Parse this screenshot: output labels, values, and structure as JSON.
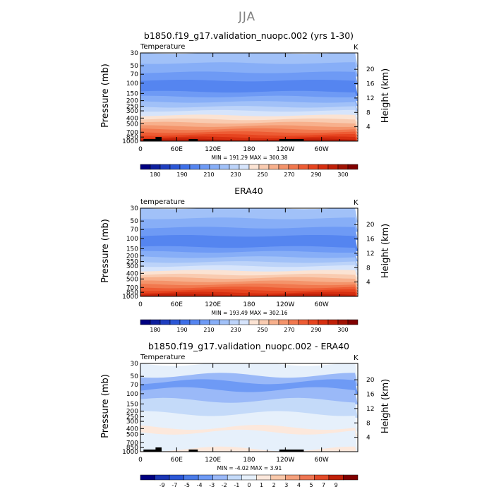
{
  "page_title": "JJA",
  "chart_data": [
    {
      "type": "heatmap",
      "title": "b1850.f19_g17.validation_nuopc.002 (yrs 1-30)",
      "variable_label": "Temperature",
      "units": "K",
      "ylabel": "Pressure (mb)",
      "ylabel_right": "Height (km)",
      "minmax_text": "MIN = 191.29   MAX = 300.38",
      "x_ticks": [
        "0",
        "60E",
        "120E",
        "180",
        "120W",
        "60W"
      ],
      "y_ticks": [
        "30",
        "50",
        "70",
        "100",
        "150",
        "200",
        "250",
        "300",
        "400",
        "500",
        "700",
        "850",
        "1000"
      ],
      "height_ticks": [
        "20",
        "16",
        "12",
        "8",
        "4"
      ],
      "levels": [
        180,
        185,
        190,
        195,
        200,
        205,
        210,
        215,
        220,
        225,
        230,
        235,
        240,
        245,
        250,
        255,
        260,
        265,
        270,
        275,
        280,
        285,
        290,
        295,
        300
      ],
      "colorbar_labels": [
        "180",
        "190",
        "210",
        "230",
        "250",
        "270",
        "290",
        "300"
      ],
      "colors": [
        "#000080",
        "#0d1f9e",
        "#1f3ebf",
        "#2b57d6",
        "#3d6fe8",
        "#5585f0",
        "#6e9af5",
        "#87aef7",
        "#a1c1f8",
        "#bcd3f9",
        "#d6e4fb",
        "#fbe3d3",
        "#f9cbb0",
        "#f7b08c",
        "#f4946b",
        "#f1784e",
        "#ed5c34",
        "#e6441f",
        "#d62f10",
        "#c02008",
        "#a01304",
        "#800000"
      ],
      "has_topography": true
    },
    {
      "type": "heatmap",
      "title": "ERA40",
      "variable_label": "temperature",
      "units": "K",
      "ylabel": "Pressure (mb)",
      "ylabel_right": "Height (km)",
      "minmax_text": "MIN = 193.49   MAX = 302.16",
      "x_ticks": [
        "0",
        "60E",
        "120E",
        "180",
        "120W",
        "60W"
      ],
      "y_ticks": [
        "30",
        "50",
        "70",
        "100",
        "150",
        "200",
        "250",
        "300",
        "400",
        "500",
        "700",
        "850",
        "1000"
      ],
      "height_ticks": [
        "20",
        "16",
        "12",
        "8",
        "4"
      ],
      "levels": [
        180,
        185,
        190,
        195,
        200,
        205,
        210,
        215,
        220,
        225,
        230,
        235,
        240,
        245,
        250,
        255,
        260,
        265,
        270,
        275,
        280,
        285,
        290,
        295,
        300
      ],
      "colorbar_labels": [
        "180",
        "190",
        "210",
        "230",
        "250",
        "270",
        "290",
        "300"
      ],
      "colors": [
        "#000080",
        "#0d1f9e",
        "#1f3ebf",
        "#2b57d6",
        "#3d6fe8",
        "#5585f0",
        "#6e9af5",
        "#87aef7",
        "#a1c1f8",
        "#bcd3f9",
        "#d6e4fb",
        "#fbe3d3",
        "#f9cbb0",
        "#f7b08c",
        "#f4946b",
        "#f1784e",
        "#ed5c34",
        "#e6441f",
        "#d62f10",
        "#c02008",
        "#a01304",
        "#800000"
      ],
      "has_topography": false
    },
    {
      "type": "heatmap",
      "title": "b1850.f19_g17.validation_nuopc.002 - ERA40",
      "variable_label": "Temperature",
      "units": "K",
      "ylabel": "Pressure (mb)",
      "ylabel_right": "Height (km)",
      "minmax_text": "MIN =   -4.02   MAX =   3.91",
      "x_ticks": [
        "0",
        "60E",
        "120E",
        "180",
        "120W",
        "60W"
      ],
      "y_ticks": [
        "30",
        "50",
        "70",
        "100",
        "150",
        "200",
        "250",
        "300",
        "400",
        "500",
        "700",
        "850",
        "1000"
      ],
      "height_ticks": [
        "20",
        "16",
        "12",
        "8",
        "4"
      ],
      "levels": [
        -9,
        -7,
        -5,
        -4,
        -3,
        -2,
        -1,
        0,
        1,
        2,
        3,
        4,
        5,
        7,
        9
      ],
      "colorbar_labels": [
        "-9",
        "-7",
        "-5",
        "-4",
        "-3",
        "-2",
        "-1",
        "0",
        "1",
        "2",
        "3",
        "4",
        "5",
        "7",
        "9"
      ],
      "colors": [
        "#000080",
        "#1a36b5",
        "#2b57d6",
        "#4a7be8",
        "#6e9af5",
        "#9ab9f8",
        "#c4daf9",
        "#e6f0fb",
        "#fce8dc",
        "#f9c9ab",
        "#f4a07c",
        "#ee7552",
        "#e24a28",
        "#c02008",
        "#800000"
      ],
      "has_topography": true
    }
  ]
}
